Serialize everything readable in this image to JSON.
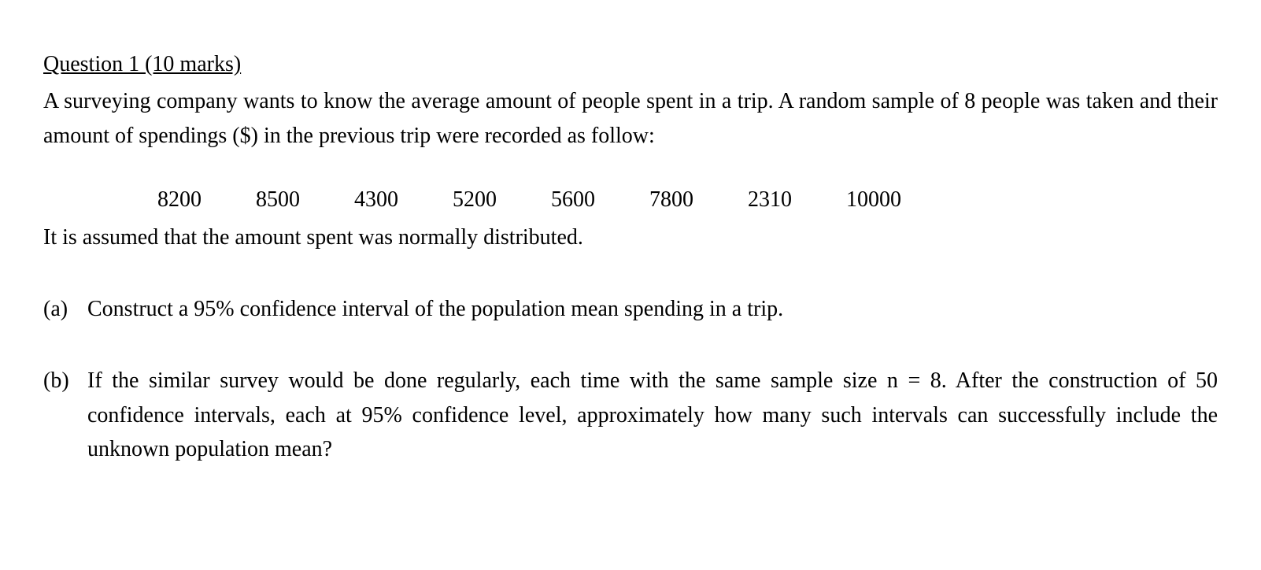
{
  "question": {
    "title": "Question 1 (10 marks)",
    "intro": "A surveying company wants to know the average amount of people spent in a trip. A random sample of 8 people was taken and their amount of spendings ($) in the previous trip were recorded as follow:",
    "data_values": [
      "8200",
      "8500",
      "4300",
      "5200",
      "5600",
      "7800",
      "2310",
      "10000"
    ],
    "assumption": "It is assumed that the amount spent was normally distributed.",
    "parts": {
      "a": {
        "label": "(a)",
        "text": "Construct a 95% confidence interval of the population mean spending in a trip."
      },
      "b": {
        "label": "(b)",
        "text": "If the similar survey would be done regularly, each time with the same sample size n = 8.  After the construction of 50 confidence intervals, each at 95% confidence level, approximately how many such intervals can successfully include the unknown population mean?"
      }
    }
  },
  "style": {
    "font_family": "Times New Roman",
    "font_size_pt": 21,
    "text_color": "#000000",
    "background_color": "#ffffff"
  }
}
